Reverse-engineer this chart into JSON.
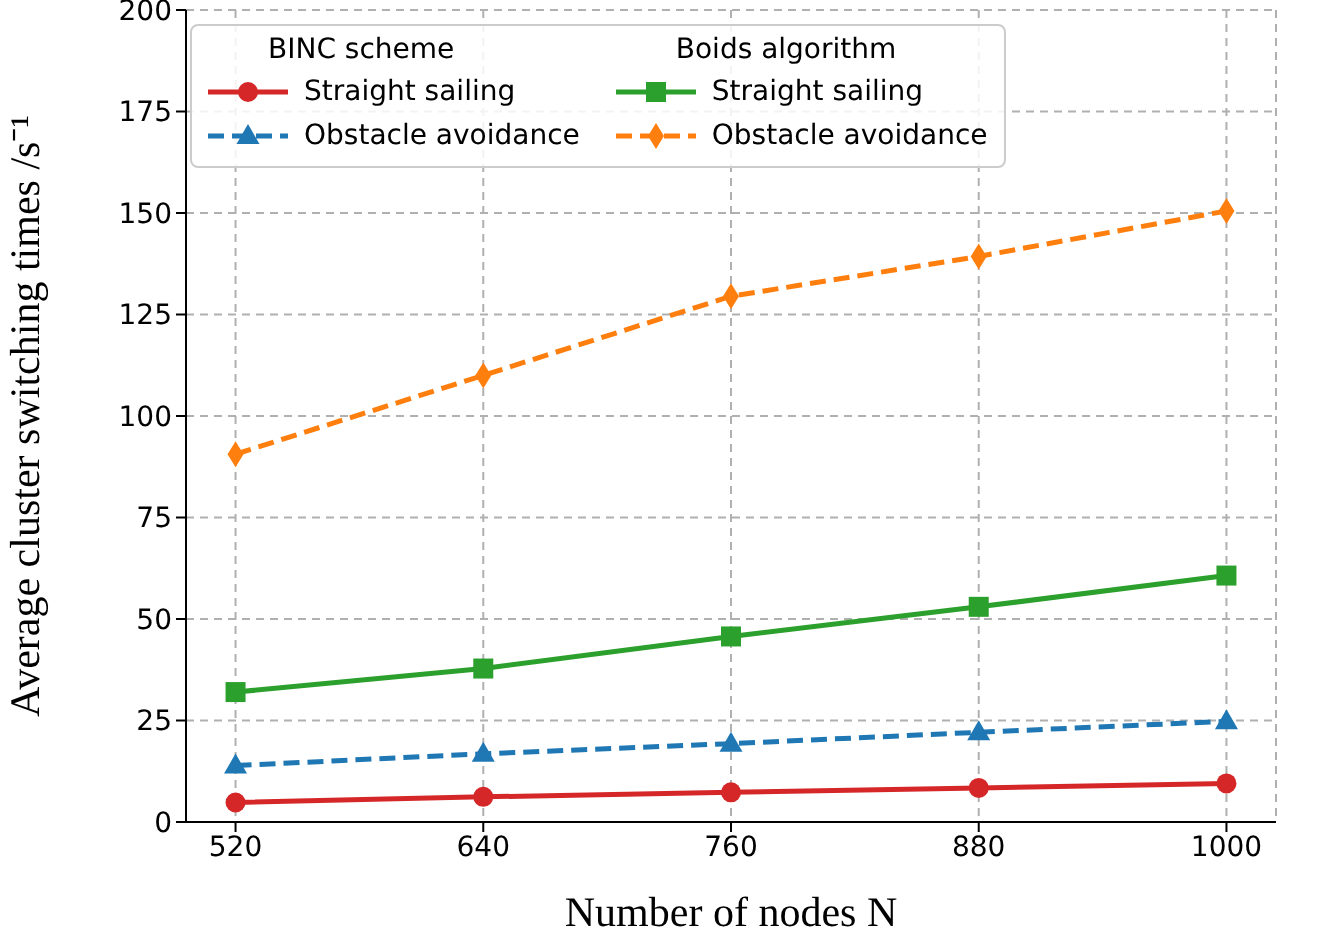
{
  "chart_data": {
    "type": "line",
    "xlabel": "Number of nodes N",
    "ylabel": "Average cluster switching times /s⁻¹",
    "x": [
      520,
      640,
      760,
      880,
      1000
    ],
    "series": [
      {
        "name": "Straight sailing",
        "color": "#d62728",
        "marker": "circle",
        "line_style": "solid",
        "values": [
          4.8,
          6.2,
          7.3,
          8.4,
          9.5
        ]
      },
      {
        "name": "Obstacle avoidance",
        "color": "#1f77b4",
        "marker": "triangle",
        "line_style": "dashed",
        "values": [
          13.9,
          16.8,
          19.3,
          22.1,
          24.8
        ]
      },
      {
        "name": "Straight sailing",
        "color": "#2ca02c",
        "marker": "square",
        "line_style": "solid",
        "values": [
          32,
          37.8,
          45.7,
          53,
          60.7
        ]
      },
      {
        "name": "Obstacle avoidance",
        "color": "#ff7f0e",
        "marker": "diamond",
        "line_style": "dashed",
        "values": [
          90.6,
          110,
          129.5,
          139.3,
          150.5
        ]
      }
    ],
    "annotations": [
      "BINC scheme",
      "Boids algorithm"
    ],
    "xlim": [
      496,
      1024
    ],
    "xticks": [
      520,
      640,
      760,
      880,
      1000
    ],
    "ylim": [
      0,
      200
    ],
    "yticks": [
      0,
      25,
      50,
      75,
      100,
      125,
      150,
      175,
      200
    ],
    "grid": true,
    "legend": "top left"
  }
}
